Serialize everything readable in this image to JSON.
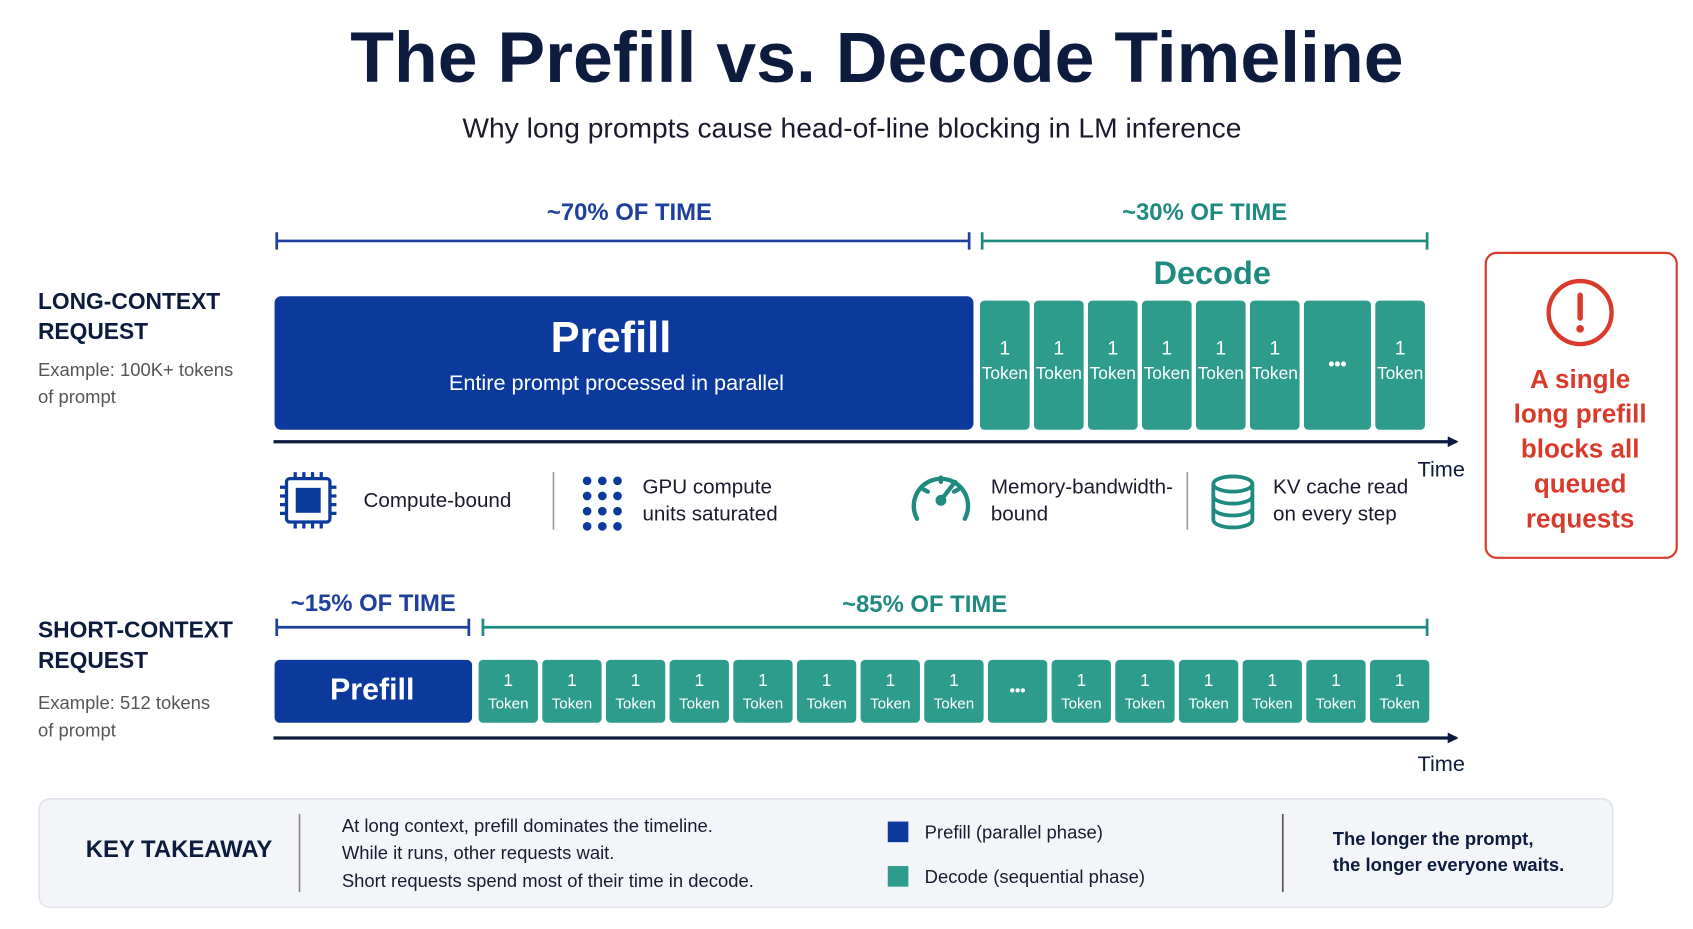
{
  "header": {
    "title": "The Prefill vs. Decode Timeline",
    "subtitle": "Why long prompts cause head-of-line blocking in LM inference"
  },
  "long": {
    "label_lines": [
      "LONG-CONTEXT",
      "REQUEST"
    ],
    "example_lines": [
      "Example: 100K+ tokens",
      "of prompt"
    ],
    "prefill_share": "~70% OF TIME",
    "decode_share": "~30% OF TIME",
    "decode_title": "Decode",
    "prefill_title": "Prefill",
    "prefill_caption": "Entire prompt processed in parallel",
    "tokens": [
      {
        "count": "1",
        "unit": "Token"
      },
      {
        "count": "1",
        "unit": "Token"
      },
      {
        "count": "1",
        "unit": "Token"
      },
      {
        "count": "1",
        "unit": "Token"
      },
      {
        "count": "1",
        "unit": "Token"
      },
      {
        "count": "1",
        "unit": "Token"
      },
      {
        "ellipsis": "•••"
      },
      {
        "count": "1",
        "unit": "Token"
      }
    ],
    "axis_label": "Time",
    "traits": [
      {
        "lines": [
          "Compute-bound"
        ]
      },
      {
        "lines": [
          "GPU compute",
          "units saturated"
        ]
      },
      {
        "lines": [
          "Memory-bandwidth-",
          "bound"
        ]
      },
      {
        "lines": [
          "KV cache read",
          "on every step"
        ]
      }
    ]
  },
  "short": {
    "label_lines": [
      "SHORT-CONTEXT",
      "REQUEST"
    ],
    "example_lines": [
      "Example: 512 tokens",
      "of prompt"
    ],
    "prefill_share": "~15% OF TIME",
    "decode_share": "~85% OF TIME",
    "prefill_title": "Prefill",
    "tokens": [
      {
        "count": "1",
        "unit": "Token"
      },
      {
        "count": "1",
        "unit": "Token"
      },
      {
        "count": "1",
        "unit": "Token"
      },
      {
        "count": "1",
        "unit": "Token"
      },
      {
        "count": "1",
        "unit": "Token"
      },
      {
        "count": "1",
        "unit": "Token"
      },
      {
        "count": "1",
        "unit": "Token"
      },
      {
        "count": "1",
        "unit": "Token"
      },
      {
        "ellipsis": "•••"
      },
      {
        "count": "1",
        "unit": "Token"
      },
      {
        "count": "1",
        "unit": "Token"
      },
      {
        "count": "1",
        "unit": "Token"
      },
      {
        "count": "1",
        "unit": "Token"
      },
      {
        "count": "1",
        "unit": "Token"
      },
      {
        "count": "1",
        "unit": "Token"
      }
    ],
    "axis_label": "Time"
  },
  "warning": {
    "lines": [
      "A single",
      "long prefill",
      "blocks all",
      "queued",
      "requests"
    ]
  },
  "takeaway": {
    "title": "KEY TAKEAWAY",
    "lines": [
      "At long context, prefill dominates the timeline.",
      "While it runs, other requests wait.",
      "Short requests spend most of their time in decode."
    ],
    "legend": [
      "Prefill (parallel phase)",
      "Decode (sequential phase)"
    ],
    "conclusion_lines": [
      "The longer the prompt,",
      "the longer everyone waits."
    ]
  }
}
